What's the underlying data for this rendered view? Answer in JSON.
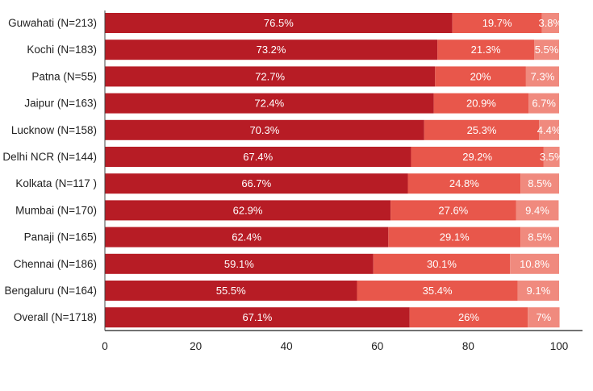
{
  "chart_data": {
    "type": "bar",
    "orientation": "horizontal",
    "stacked": true,
    "categories": [
      "Guwahati (N=213)",
      "Kochi (N=183)",
      "Patna (N=55)",
      "Jaipur (N=163)",
      "Lucknow (N=158)",
      "Delhi NCR (N=144)",
      "Kolkata (N=117 )",
      "Mumbai (N=170)",
      "Panaji (N=165)",
      "Chennai (N=186)",
      "Bengaluru (N=164)",
      "Overall (N=1718)"
    ],
    "series": [
      {
        "color": "#b71c25",
        "values": [
          76.5,
          73.2,
          72.7,
          72.4,
          70.3,
          67.4,
          66.7,
          62.9,
          62.4,
          59.1,
          55.5,
          67.1
        ],
        "labels": [
          "76.5%",
          "73.2%",
          "72.7%",
          "72.4%",
          "70.3%",
          "67.4%",
          "66.7%",
          "62.9%",
          "62.4%",
          "59.1%",
          "55.5%",
          "67.1%"
        ]
      },
      {
        "color": "#e8574b",
        "values": [
          19.7,
          21.3,
          20,
          20.9,
          25.3,
          29.2,
          24.8,
          27.6,
          29.1,
          30.1,
          35.4,
          26
        ],
        "labels": [
          "19.7%",
          "21.3%",
          "20%",
          "20.9%",
          "25.3%",
          "29.2%",
          "24.8%",
          "27.6%",
          "29.1%",
          "30.1%",
          "35.4%",
          "26%"
        ]
      },
      {
        "color": "#f08a7e",
        "values": [
          3.8,
          5.5,
          7.3,
          6.7,
          4.4,
          3.5,
          8.5,
          9.4,
          8.5,
          10.8,
          9.1,
          7
        ],
        "labels": [
          "3.8%",
          "5.5%",
          "7.3%",
          "6.7%",
          "4.4%",
          "3.5%",
          "8.5%",
          "9.4%",
          "8.5%",
          "10.8%",
          "9.1%",
          "7%"
        ]
      }
    ],
    "xlim": [
      0,
      100
    ],
    "xticks": [
      "0",
      "20",
      "40",
      "60",
      "80",
      "100"
    ],
    "grid": false,
    "legend": "none",
    "title": "",
    "xlabel": "",
    "ylabel": ""
  }
}
